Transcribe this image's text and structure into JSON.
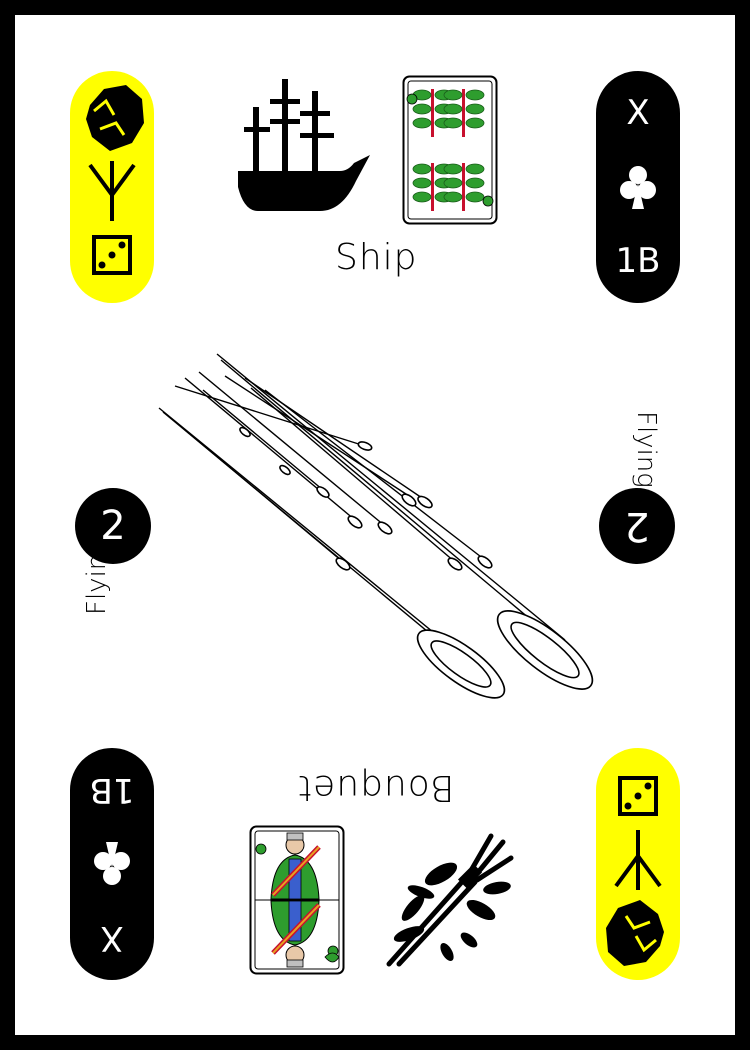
{
  "top": {
    "title": "Ship",
    "playing_card": "ten-of-leaves-card",
    "corner": {
      "roman": "X",
      "suit_icon": "club-icon",
      "code": "1B"
    },
    "left_icons": [
      "rock-icon",
      "tree-rune-icon",
      "die-three-icon"
    ]
  },
  "middle": {
    "number": "2",
    "word": "Flying",
    "illustration": "flying-streaks-icon"
  },
  "bottom": {
    "title": "Bouquet",
    "playing_card": "king-of-leaves-card",
    "corner": {
      "roman": "X",
      "suit_icon": "club-icon",
      "code": "1B"
    },
    "right_icons": [
      "die-three-icon",
      "tree-rune-icon",
      "rock-icon"
    ]
  },
  "colors": {
    "accent": "#ffff00",
    "ink": "#000000",
    "leaf": "#2e9d2e",
    "stem": "#c8102e"
  }
}
